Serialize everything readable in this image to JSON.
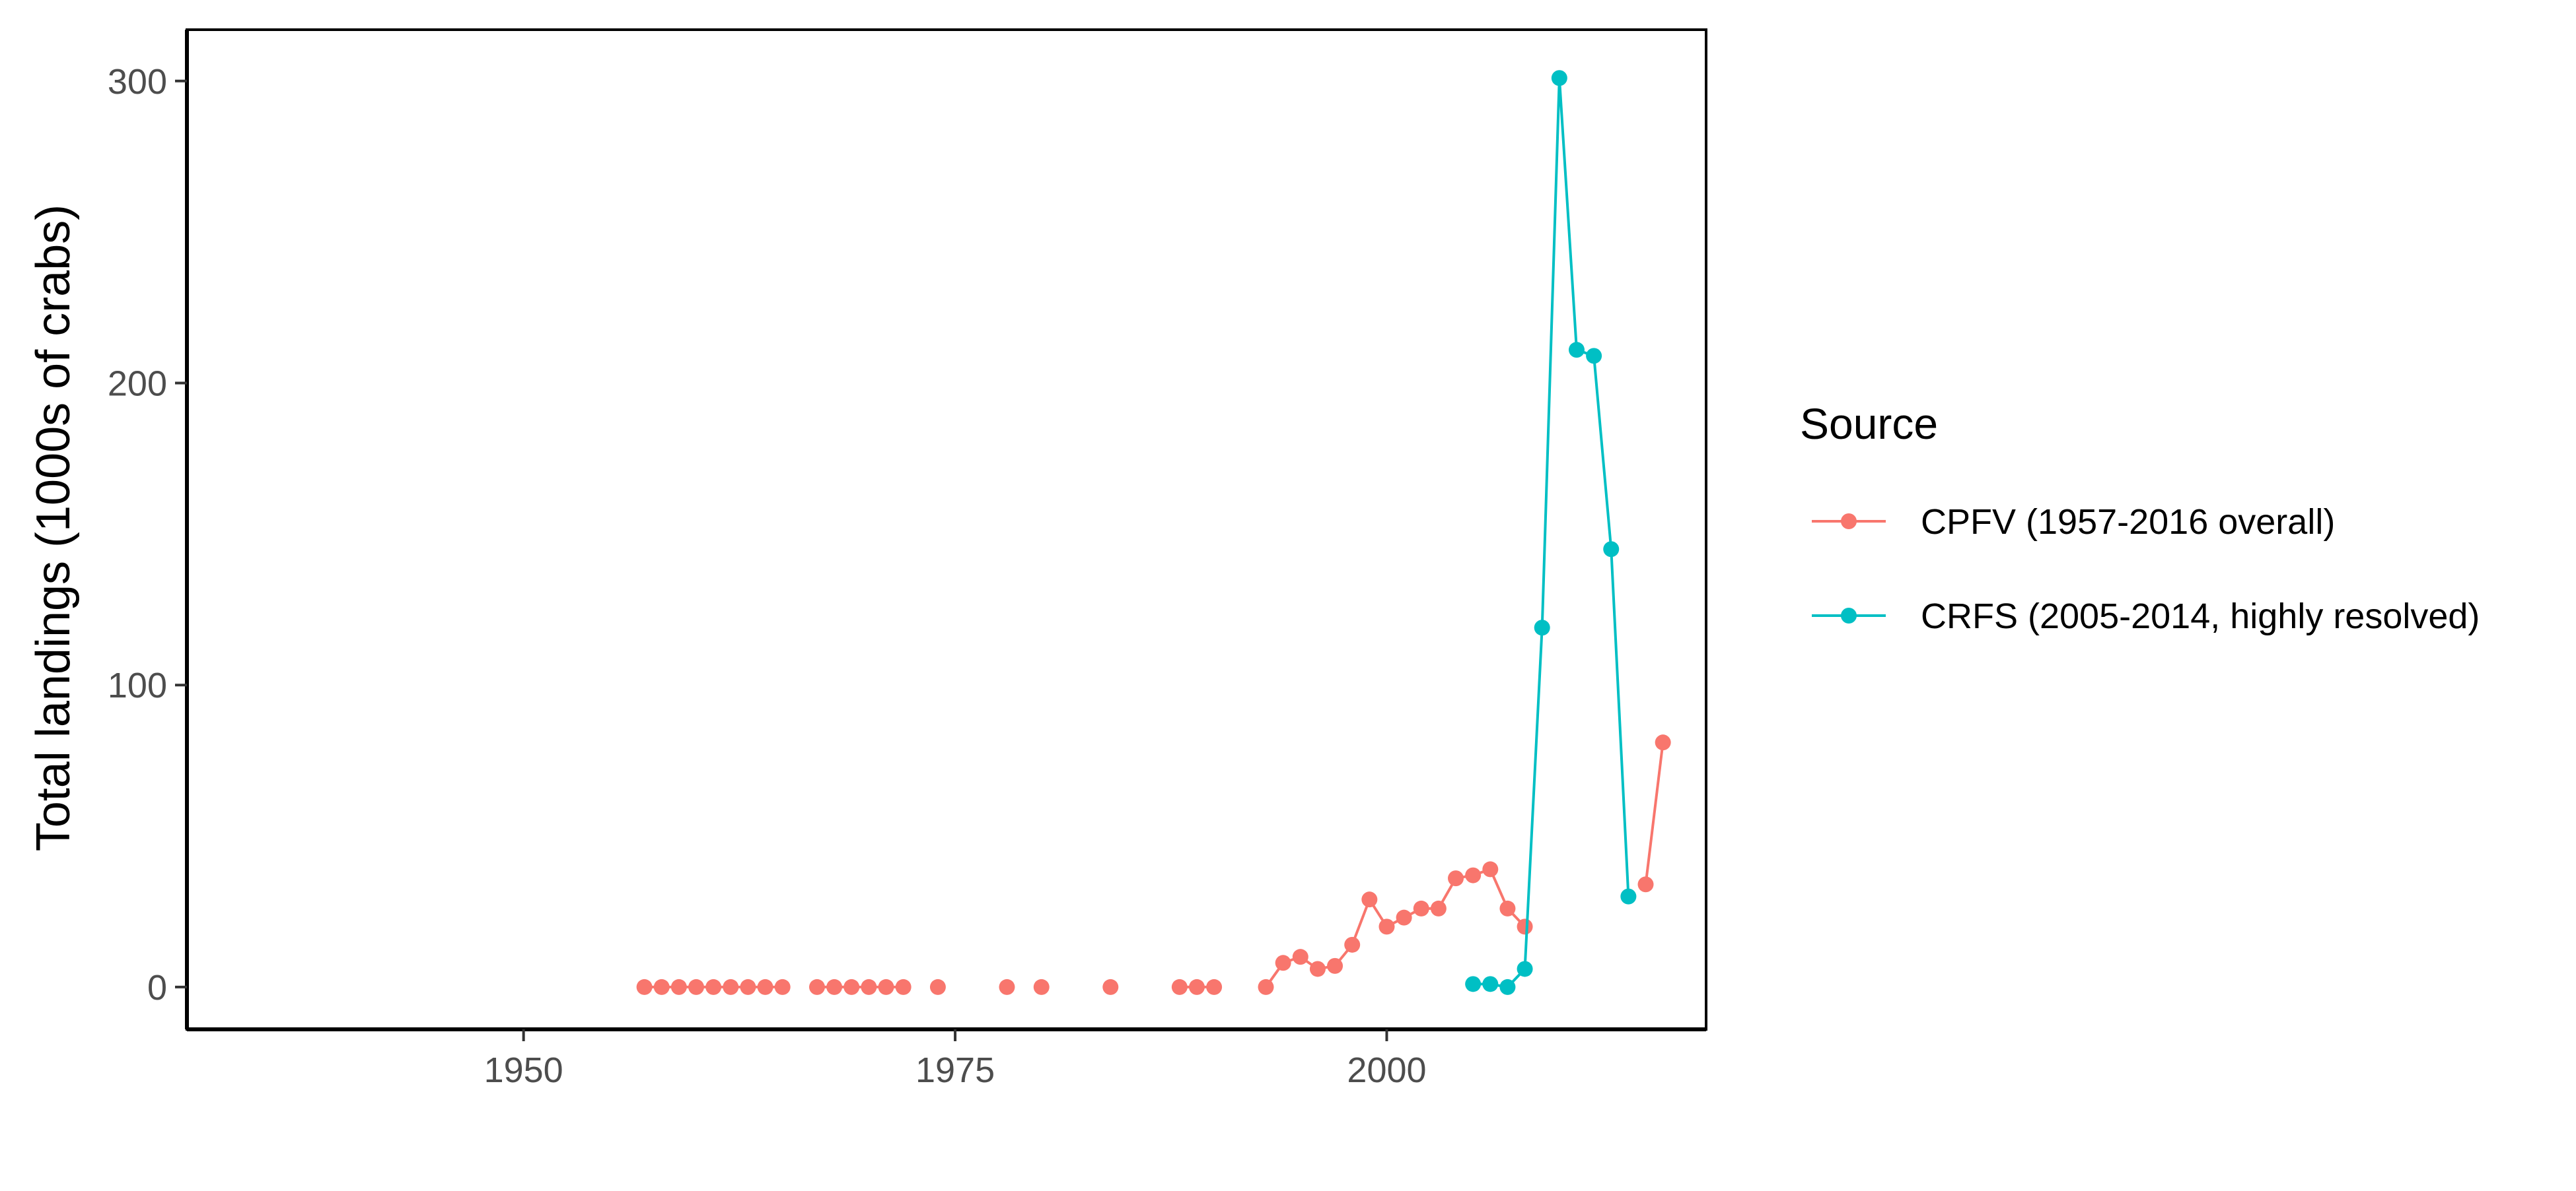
{
  "chart_data": {
    "type": "line",
    "title": "",
    "xlabel": "",
    "ylabel": "Total landings (1000s of crabs)",
    "xlim": [
      1930.5,
      2018.5
    ],
    "ylim": [
      -14,
      317
    ],
    "x_ticks": [
      1950,
      1975,
      2000
    ],
    "y_ticks": [
      0,
      100,
      200,
      300
    ],
    "grid": false,
    "legend": {
      "title": "Source",
      "placement": "right"
    },
    "series": [
      {
        "name": "CPFV (1957-2016 overall)",
        "color": "#F8766D",
        "segments": [
          [
            [
              1957,
              0
            ],
            [
              1958,
              0
            ],
            [
              1959,
              0
            ],
            [
              1960,
              0
            ],
            [
              1961,
              0
            ],
            [
              1962,
              0
            ],
            [
              1963,
              0
            ],
            [
              1964,
              0
            ],
            [
              1965,
              0
            ]
          ],
          [
            [
              1967,
              0
            ],
            [
              1968,
              0
            ],
            [
              1969,
              0
            ],
            [
              1970,
              0
            ],
            [
              1971,
              0
            ],
            [
              1972,
              0
            ]
          ],
          [
            [
              1974,
              0
            ]
          ],
          [
            [
              1978,
              0
            ]
          ],
          [
            [
              1980,
              0
            ]
          ],
          [
            [
              1984,
              0
            ]
          ],
          [
            [
              1988,
              0
            ],
            [
              1989,
              0
            ],
            [
              1990,
              0
            ]
          ],
          [
            [
              1993,
              0
            ],
            [
              1994,
              8
            ],
            [
              1995,
              10
            ],
            [
              1996,
              6
            ],
            [
              1997,
              7
            ],
            [
              1998,
              14
            ],
            [
              1999,
              29
            ],
            [
              2000,
              20
            ],
            [
              2001,
              23
            ],
            [
              2002,
              26
            ],
            [
              2003,
              26
            ],
            [
              2004,
              36
            ],
            [
              2005,
              37
            ],
            [
              2006,
              39
            ],
            [
              2007,
              26
            ],
            [
              2008,
              20
            ]
          ],
          [
            [
              2015,
              34
            ],
            [
              2016,
              81
            ]
          ]
        ]
      },
      {
        "name": "CRFS (2005-2014, highly resolved)",
        "color": "#00BFC4",
        "segments": [
          [
            [
              2005,
              1
            ],
            [
              2006,
              1
            ],
            [
              2007,
              0
            ],
            [
              2008,
              6
            ],
            [
              2009,
              119
            ],
            [
              2010,
              301
            ],
            [
              2011,
              211
            ],
            [
              2012,
              209
            ],
            [
              2013,
              145
            ],
            [
              2014,
              30
            ]
          ]
        ]
      }
    ]
  }
}
